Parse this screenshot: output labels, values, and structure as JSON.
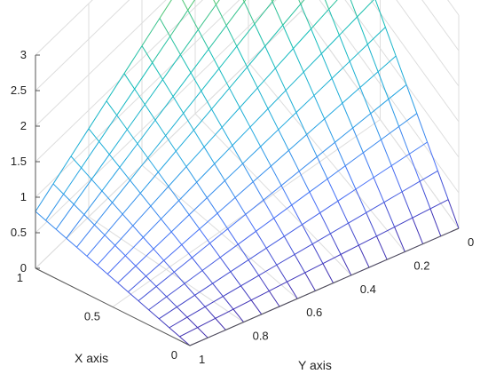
{
  "chart_data": {
    "type": "surface",
    "title": "",
    "xlabel": "X axis",
    "ylabel": "Y axis",
    "zlabel": "",
    "xlim": [
      0,
      1
    ],
    "ylim": [
      0,
      1
    ],
    "zlim": [
      0,
      3
    ],
    "x_ticks": [
      "0",
      "0.5",
      "1"
    ],
    "y_ticks": [
      "0",
      "0.2",
      "0.4",
      "0.6",
      "0.8",
      "1"
    ],
    "z_ticks": [
      "0",
      "0.5",
      "1",
      "1.5",
      "2",
      "2.5",
      "3"
    ],
    "grid": true,
    "colormap": "parula",
    "mesh_points_per_axis": 16,
    "corner_values": [
      {
        "x": 0,
        "y": 0,
        "z": 0
      },
      {
        "x": 0,
        "y": 1,
        "z": 0
      },
      {
        "x": 1,
        "y": 0,
        "z": 3
      },
      {
        "x": 1,
        "y": 1,
        "z": 0.8
      }
    ],
    "colors": {
      "grid": "#dddddd",
      "axis": "#555555",
      "colormap_stops": [
        "#3e26a8",
        "#4770f8",
        "#1fa8e0",
        "#13beb8",
        "#5ac864",
        "#c8c12a",
        "#f9e91c"
      ]
    }
  }
}
